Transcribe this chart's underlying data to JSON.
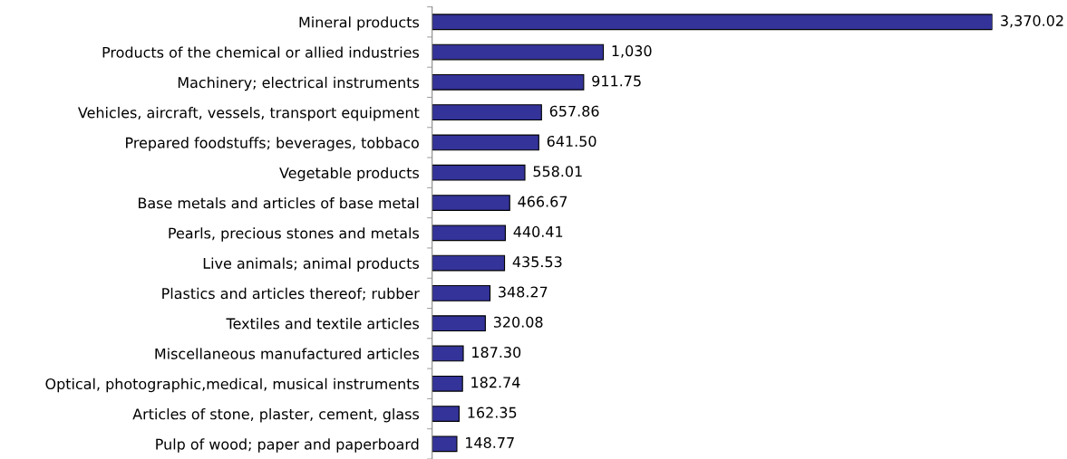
{
  "chart_data": {
    "type": "bar",
    "orientation": "horizontal",
    "categories": [
      "Mineral products",
      "Products of the chemical or allied industries",
      "Machinery; electrical instruments",
      "Vehicles, aircraft, vessels, transport equipment",
      "Prepared foodstuffs; beverages, tobbaco",
      "Vegetable products",
      "Base metals and articles of base metal",
      "Pearls, precious stones and metals",
      "Live animals; animal products",
      "Plastics and articles thereof; rubber",
      "Textiles and textile articles",
      "Miscellaneous manufactured articles",
      "Optical, photographic,medical, musical instruments",
      "Articles of stone, plaster, cement, glass",
      "Pulp of wood; paper and paperboard"
    ],
    "values": [
      3370.02,
      1030,
      911.75,
      657.86,
      641.5,
      558.01,
      466.67,
      440.41,
      435.53,
      348.27,
      320.08,
      187.3,
      182.74,
      162.35,
      148.77
    ],
    "value_labels": [
      "3,370.02",
      "1,030",
      "911.75",
      "657.86",
      "641.50",
      "558.01",
      "466.67",
      "440.41",
      "435.53",
      "348.27",
      "320.08",
      "187.30",
      "182.74",
      "162.35",
      "148.77"
    ],
    "color": "#333399",
    "grid": false,
    "legend": false
  }
}
